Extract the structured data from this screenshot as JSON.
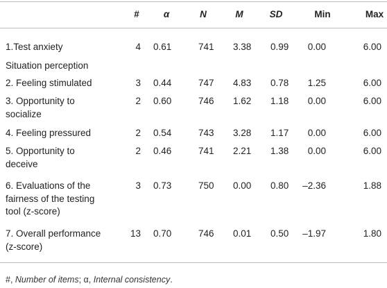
{
  "table": {
    "headers": [
      "#",
      "α",
      "N",
      "M",
      "SD",
      "Min",
      "Max"
    ],
    "rows": [
      {
        "label": [
          "1.Test anxiety"
        ],
        "cells": [
          "4",
          "0.61",
          "741",
          "3.38",
          "0.99",
          "0.00",
          "6.00"
        ]
      },
      {
        "section": "Situation perception"
      },
      {
        "label": [
          "2. Feeling stimulated"
        ],
        "cells": [
          "3",
          "0.44",
          "747",
          "4.83",
          "0.78",
          "1.25",
          "6.00"
        ]
      },
      {
        "label": [
          "3. Opportunity to",
          "socialize"
        ],
        "cells": [
          "2",
          "0.60",
          "746",
          "1.62",
          "1.18",
          "0.00",
          "6.00"
        ]
      },
      {
        "label": [
          "4. Feeling pressured"
        ],
        "cells": [
          "2",
          "0.54",
          "743",
          "3.28",
          "1.17",
          "0.00",
          "6.00"
        ]
      },
      {
        "label": [
          "5. Opportunity to",
          "deceive"
        ],
        "cells": [
          "2",
          "0.46",
          "741",
          "2.21",
          "1.38",
          "0.00",
          "6.00"
        ]
      },
      {
        "label": [
          "6. Evaluations of the",
          "fairness of the testing",
          "tool (z-score)"
        ],
        "cells": [
          "3",
          "0.73",
          "750",
          "0.00",
          "0.80",
          "–2.36",
          "1.88"
        ]
      },
      {
        "label": [
          "7. Overall performance",
          "(z-score)"
        ],
        "cells": [
          "13",
          "0.70",
          "746",
          "0.01",
          "0.50",
          "–1.97",
          "1.80"
        ]
      }
    ],
    "footnote": [
      "#, ",
      "Number of items",
      "; α, ",
      "Internal consistency",
      "."
    ]
  }
}
